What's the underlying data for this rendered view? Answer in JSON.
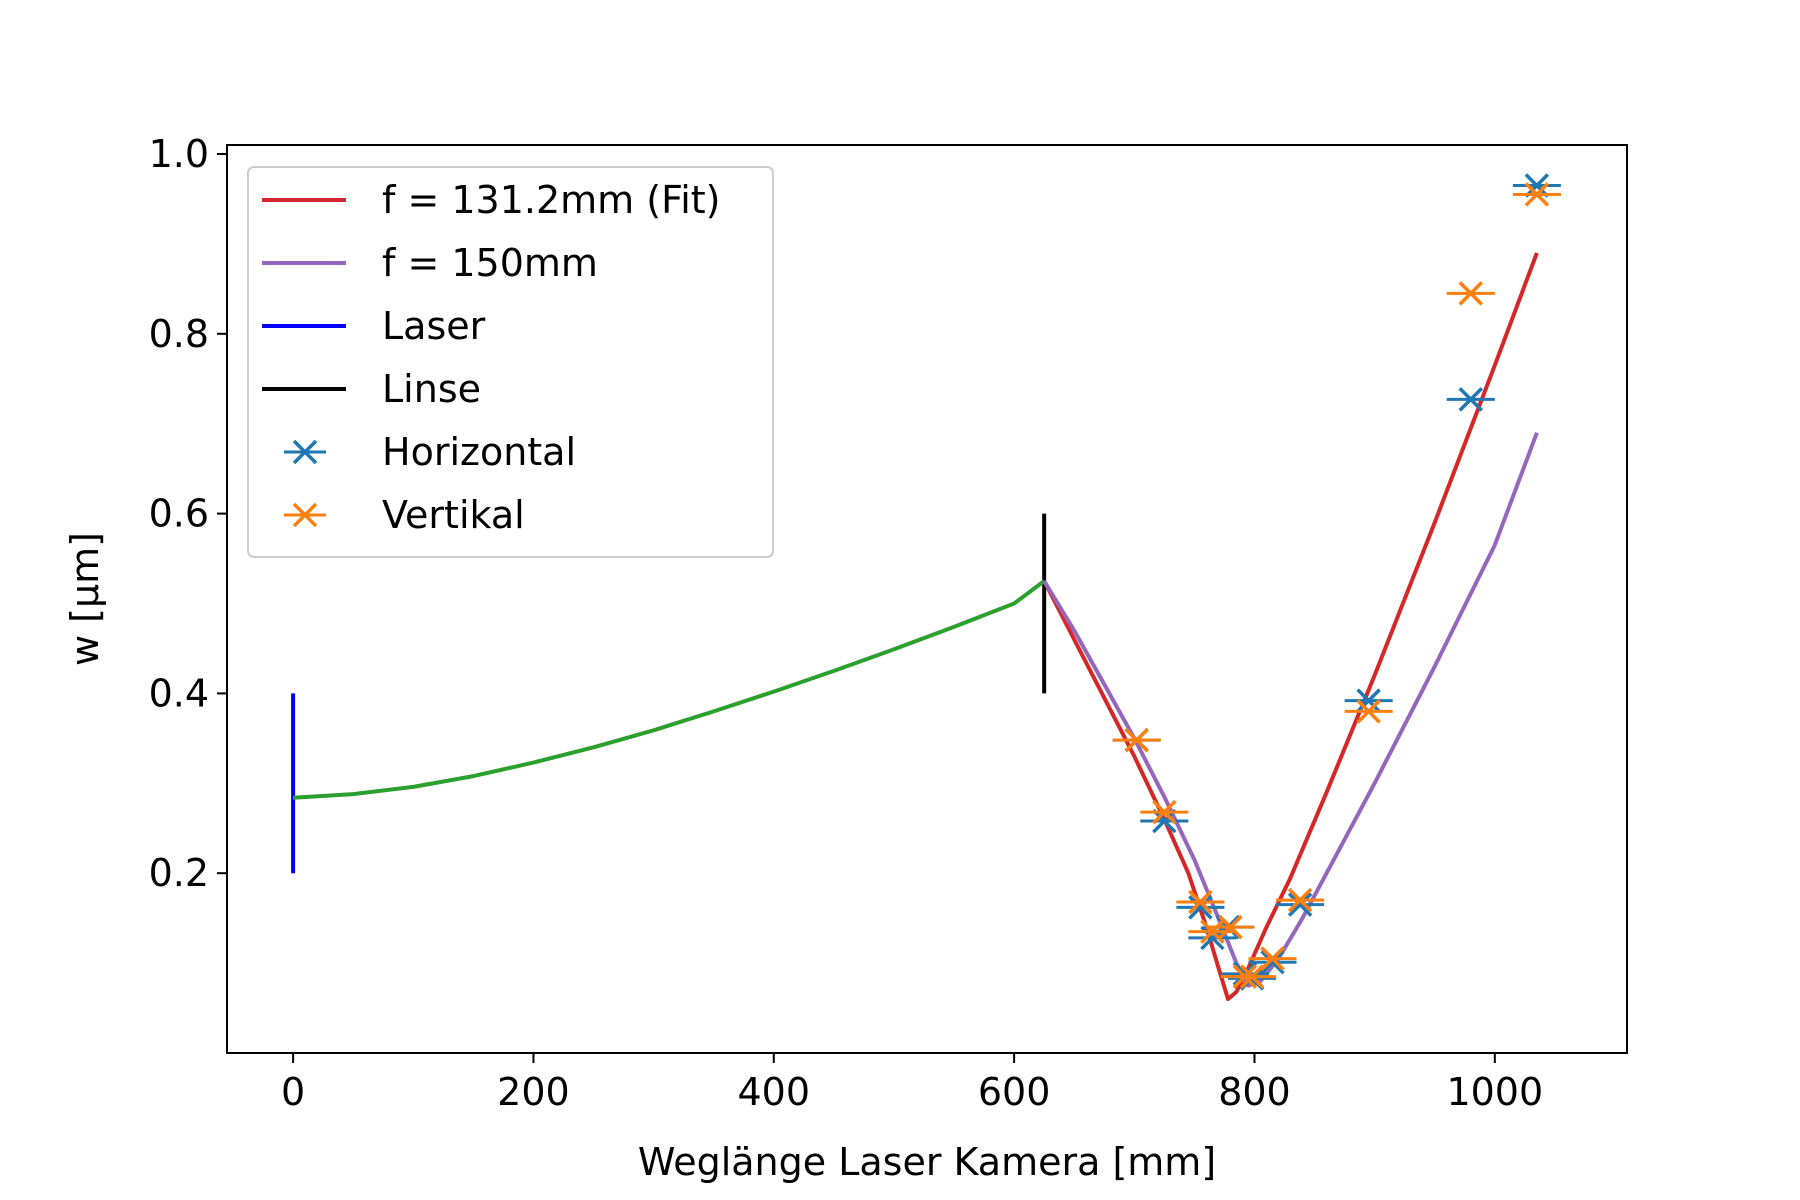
{
  "chart_data": {
    "type": "line",
    "title": "",
    "xlabel": "Weglänge Laser Kamera [mm]",
    "ylabel": "w [µm]",
    "xlim": [
      -55,
      1110
    ],
    "ylim": [
      0.0,
      1.01
    ],
    "x_ticks": [
      0,
      200,
      400,
      600,
      800,
      1000
    ],
    "x_tick_labels": [
      "0",
      "200",
      "400",
      "600",
      "800",
      "1000"
    ],
    "y_ticks": [
      0.2,
      0.4,
      0.6,
      0.8,
      1.0
    ],
    "y_tick_labels": [
      "0.2",
      "0.4",
      "0.6",
      "0.8",
      "1.0"
    ],
    "grid": false,
    "legend_position": "upper-left",
    "legend": [
      {
        "label": "f = 131.2mm (Fit)",
        "kind": "line",
        "color": "#d62728"
      },
      {
        "label": "f = 150mm",
        "kind": "line",
        "color": "#9467bd"
      },
      {
        "label": "Laser",
        "kind": "line",
        "color": "#0000ff"
      },
      {
        "label": "Linse",
        "kind": "line",
        "color": "#000000"
      },
      {
        "label": "Horizontal",
        "kind": "marker",
        "color": "#1f77b4"
      },
      {
        "label": "Vertikal",
        "kind": "marker",
        "color": "#ff7f0e"
      }
    ],
    "beam_before_lens": {
      "color": "#2ca02c",
      "x": [
        0,
        50,
        100,
        150,
        200,
        250,
        300,
        350,
        400,
        450,
        500,
        550,
        600,
        625
      ],
      "y": [
        0.284,
        0.288,
        0.296,
        0.308,
        0.323,
        0.34,
        0.359,
        0.38,
        0.402,
        0.425,
        0.449,
        0.474,
        0.5,
        0.525
      ]
    },
    "laser_marker": {
      "x": 0,
      "y_range": [
        0.2,
        0.4
      ],
      "color": "#0000ff"
    },
    "lens_marker": {
      "x": 625,
      "y_range": [
        0.4,
        0.6
      ],
      "color": "#000000"
    },
    "series": [
      {
        "name": "f = 131.2mm (Fit)",
        "color": "#d62728",
        "x": [
          625,
          650,
          675,
          700,
          725,
          745,
          760,
          770,
          778,
          785,
          795,
          810,
          830,
          860,
          900,
          950,
          1000,
          1035
        ],
        "y": [
          0.525,
          0.46,
          0.395,
          0.33,
          0.26,
          0.2,
          0.14,
          0.095,
          0.06,
          0.068,
          0.095,
          0.14,
          0.195,
          0.29,
          0.42,
          0.59,
          0.765,
          0.89
        ]
      },
      {
        "name": "f = 150mm",
        "color": "#9467bd",
        "x": [
          625,
          650,
          675,
          700,
          725,
          750,
          770,
          785,
          795,
          805,
          820,
          840,
          870,
          900,
          950,
          1000,
          1035
        ],
        "y": [
          0.525,
          0.47,
          0.41,
          0.35,
          0.285,
          0.215,
          0.15,
          0.1,
          0.075,
          0.08,
          0.105,
          0.15,
          0.225,
          0.3,
          0.43,
          0.565,
          0.69
        ]
      },
      {
        "name": "Horizontal",
        "color": "#1f77b4",
        "marker": "x",
        "xerr": 20,
        "x": [
          702,
          725,
          755,
          765,
          778,
          792,
          798,
          815,
          838,
          895,
          980,
          1035
        ],
        "y": [
          0.348,
          0.258,
          0.162,
          0.128,
          0.14,
          0.088,
          0.083,
          0.101,
          0.165,
          0.392,
          0.727,
          0.965
        ]
      },
      {
        "name": "Vertikal",
        "color": "#ff7f0e",
        "marker": "x",
        "xerr": 20,
        "x": [
          702,
          725,
          755,
          765,
          780,
          792,
          798,
          815,
          838,
          895,
          980,
          1035
        ],
        "y": [
          0.348,
          0.268,
          0.168,
          0.135,
          0.14,
          0.085,
          0.085,
          0.105,
          0.17,
          0.38,
          0.845,
          0.955
        ]
      }
    ]
  }
}
